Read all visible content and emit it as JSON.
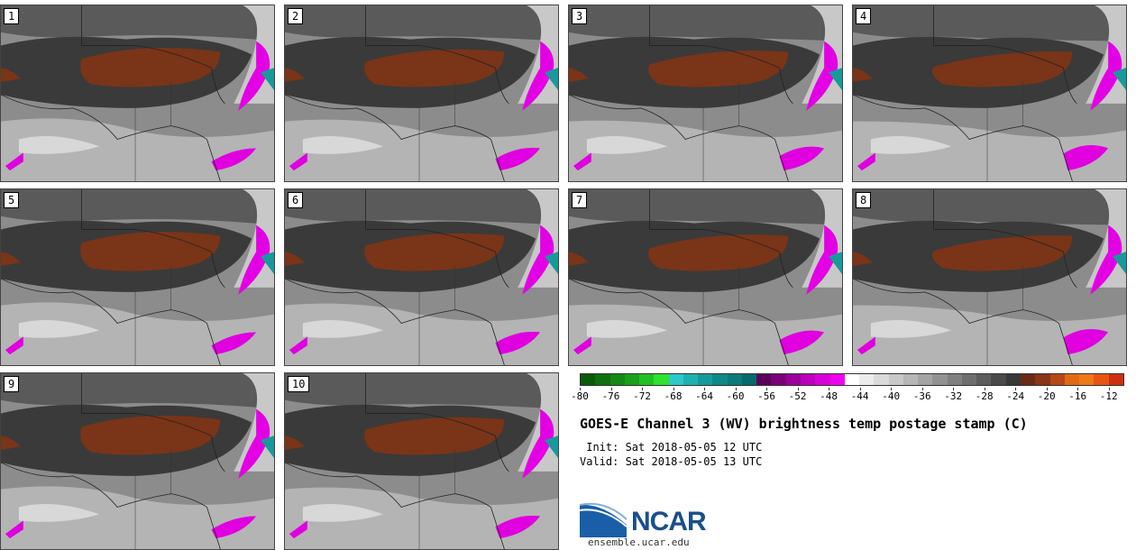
{
  "panels": [
    "1",
    "2",
    "3",
    "4",
    "5",
    "6",
    "7",
    "8",
    "9",
    "10"
  ],
  "colorbar": {
    "ticks": [
      "-80",
      "-76",
      "-72",
      "-68",
      "-64",
      "-60",
      "-56",
      "-52",
      "-48",
      "-44",
      "-40",
      "-36",
      "-32",
      "-28",
      "-24",
      "-20",
      "-16",
      "-12"
    ],
    "tick_values": [
      -80,
      -76,
      -72,
      -68,
      -64,
      -60,
      -56,
      -52,
      -48,
      -44,
      -40,
      -36,
      -32,
      -28,
      -24,
      -20,
      -16,
      -12
    ],
    "range": [
      -80,
      -10
    ],
    "colors": [
      "#0a5a0a",
      "#0f700f",
      "#148a14",
      "#1aa01a",
      "#22c022",
      "#2ee22e",
      "#2ec8c8",
      "#20b0b0",
      "#189a9a",
      "#108888",
      "#0a7a7a",
      "#066a6a",
      "#5a005a",
      "#7a007a",
      "#9a009a",
      "#bb00bb",
      "#d800d8",
      "#f000f0",
      "#ffffff",
      "#ececec",
      "#dadada",
      "#c8c8c8",
      "#b6b6b6",
      "#a4a4a4",
      "#929292",
      "#808080",
      "#6e6e6e",
      "#5c5c5c",
      "#4a4a4a",
      "#383838",
      "#6b2a16",
      "#8a3418",
      "#b44818",
      "#e06a14",
      "#f07818",
      "#e85414",
      "#d02e10"
    ]
  },
  "title": "GOES-E Channel 3 (WV) brightness temp postage stamp (C)",
  "init": " Init: Sat 2018-05-05 12 UTC",
  "valid": "Valid: Sat 2018-05-05 13 UTC",
  "logo": {
    "text": "NCAR",
    "url": "ensemble.ucar.edu"
  }
}
